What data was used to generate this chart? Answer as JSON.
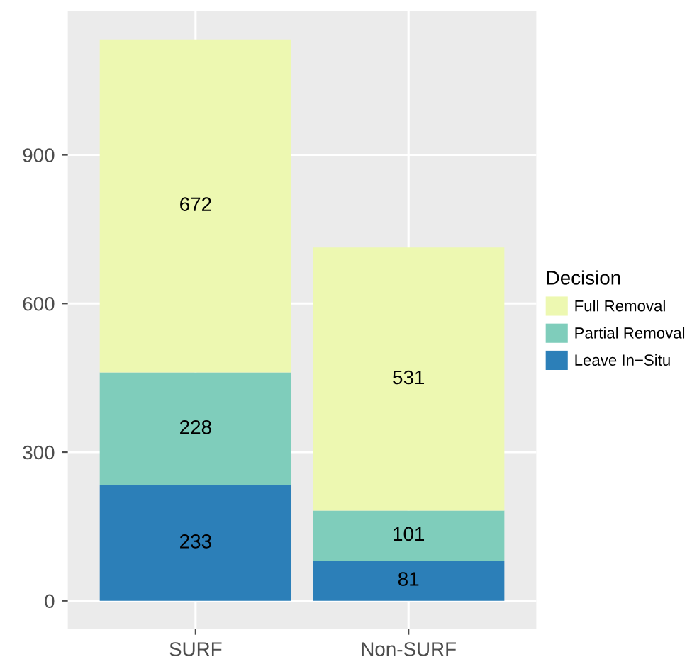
{
  "chart_data": {
    "type": "bar",
    "stacked": true,
    "categories": [
      "SURF",
      "Non-SURF"
    ],
    "legend_title": "Decision",
    "legend": "right",
    "grid": true,
    "data_labels": true,
    "ylim": [
      -56.65,
      1189.65
    ],
    "yticks": [
      0,
      300,
      600,
      900
    ],
    "series": [
      {
        "name": "Leave In−Situ",
        "color": "#2c7fb8",
        "values": [
          233,
          81
        ]
      },
      {
        "name": "Partial Removal",
        "color": "#7fcdbb",
        "values": [
          228,
          101
        ]
      },
      {
        "name": "Full Removal",
        "color": "#edf8b1",
        "values": [
          672,
          531
        ]
      }
    ]
  }
}
